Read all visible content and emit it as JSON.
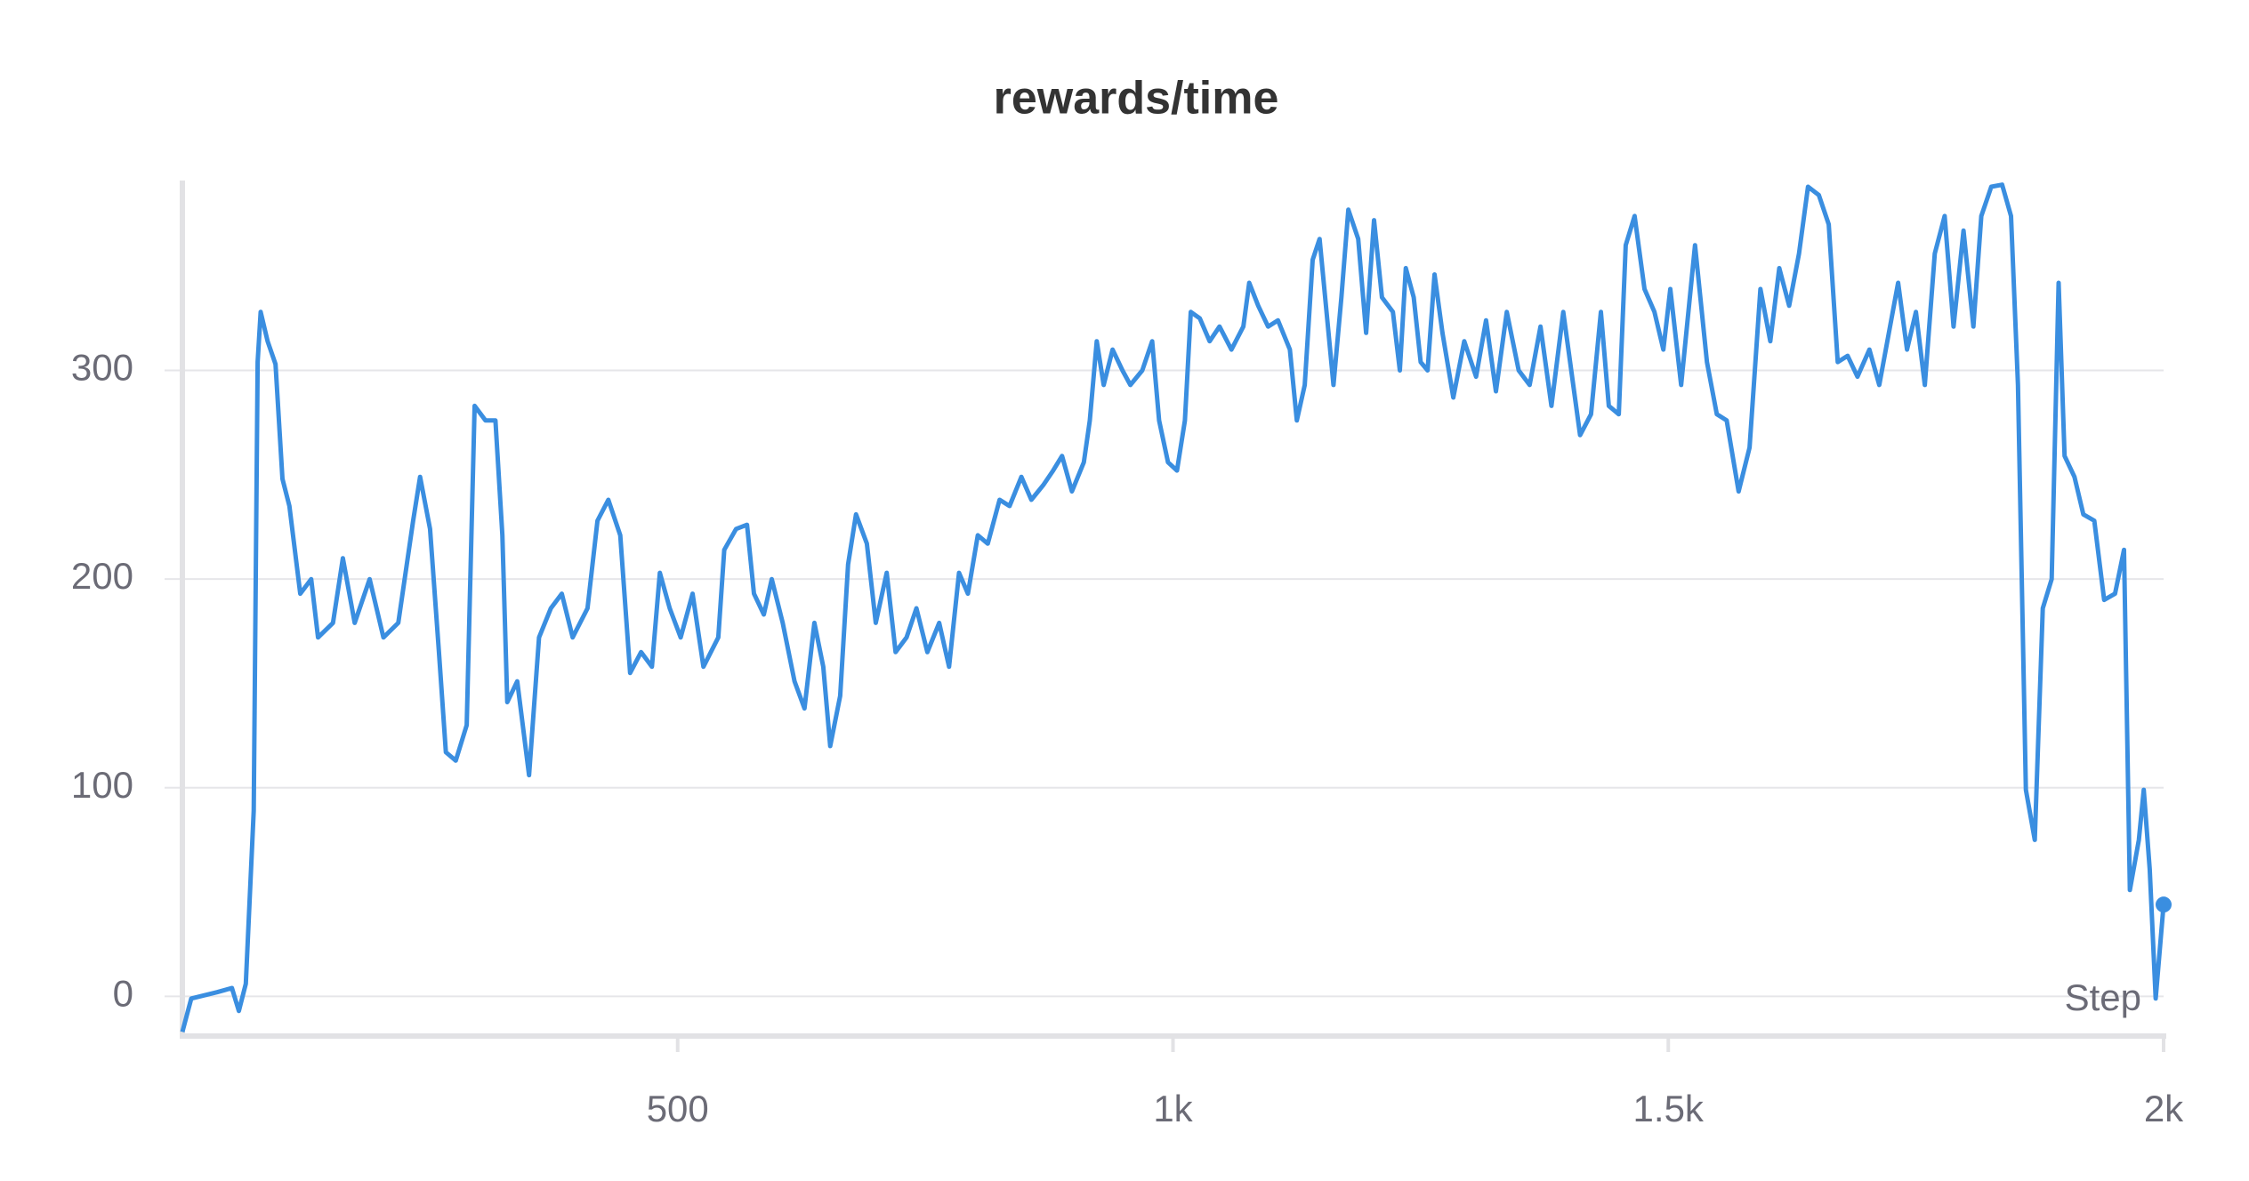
{
  "chart_data": {
    "type": "line",
    "title": "rewards/time",
    "x_label": "Step",
    "x": [
      0,
      9,
      35,
      50,
      57,
      64,
      72,
      76,
      79,
      86,
      94,
      101,
      108,
      119,
      130,
      137,
      152,
      162,
      174,
      189,
      203,
      218,
      233,
      240,
      250,
      259,
      266,
      276,
      287,
      295,
      306,
      316,
      323,
      328,
      338,
      350,
      360,
      372,
      383,
      394,
      409,
      419,
      430,
      442,
      452,
      463,
      474,
      482,
      492,
      503,
      515,
      526,
      541,
      547,
      559,
      570,
      577,
      587,
      595,
      606,
      618,
      628,
      638,
      647,
      654,
      664,
      672,
      680,
      691,
      700,
      711,
      720,
      731,
      741,
      752,
      764,
      774,
      784,
      793,
      803,
      813,
      825,
      835,
      847,
      857,
      869,
      879,
      888,
      898,
      910,
      916,
      923,
      930,
      939,
      949,
      957,
      969,
      979,
      986,
      995,
      1004,
      1012,
      1018,
      1027,
      1037,
      1047,
      1059,
      1071,
      1077,
      1086,
      1096,
      1106,
      1118,
      1125,
      1133,
      1141,
      1148,
      1155,
      1162,
      1170,
      1177,
      1187,
      1195,
      1203,
      1211,
      1222,
      1229,
      1235,
      1243,
      1250,
      1257,
      1264,
      1272,
      1283,
      1294,
      1306,
      1316,
      1326,
      1337,
      1349,
      1360,
      1371,
      1382,
      1394,
      1404,
      1411,
      1422,
      1432,
      1440,
      1450,
      1457,
      1466,
      1476,
      1486,
      1495,
      1502,
      1513,
      1527,
      1539,
      1549,
      1559,
      1571,
      1582,
      1593,
      1603,
      1612,
      1622,
      1632,
      1641,
      1652,
      1662,
      1671,
      1681,
      1691,
      1703,
      1713,
      1725,
      1732,
      1741,
      1750,
      1759,
      1769,
      1779,
      1788,
      1798,
      1808,
      1816,
      1826,
      1837,
      1846,
      1853,
      1861,
      1870,
      1878,
      1887,
      1894,
      1900,
      1910,
      1919,
      1930,
      1940,
      1951,
      1960,
      1966,
      1975,
      1980,
      1986,
      1992,
      2000
    ],
    "series": [
      {
        "name": "rewards/time",
        "color": "#3a8ee0",
        "values": [
          -17,
          -1,
          2,
          4,
          -7,
          6,
          89,
          304,
          328,
          314,
          303,
          248,
          235,
          193,
          200,
          172,
          179,
          210,
          179,
          200,
          172,
          179,
          228,
          249,
          224,
          165,
          117,
          113,
          130,
          283,
          276,
          276,
          221,
          141,
          151,
          106,
          172,
          186,
          193,
          172,
          186,
          228,
          238,
          221,
          155,
          165,
          158,
          203,
          186,
          172,
          193,
          158,
          172,
          214,
          224,
          226,
          193,
          183,
          200,
          179,
          151,
          138,
          179,
          158,
          120,
          144,
          207,
          231,
          217,
          179,
          203,
          165,
          172,
          186,
          165,
          179,
          158,
          203,
          193,
          221,
          217,
          238,
          235,
          249,
          238,
          245,
          252,
          259,
          242,
          256,
          276,
          314,
          293,
          310,
          300,
          293,
          300,
          314,
          276,
          256,
          252,
          276,
          328,
          325,
          314,
          321,
          310,
          321,
          342,
          331,
          321,
          324,
          310,
          276,
          293,
          353,
          363,
          328,
          293,
          335,
          377,
          363,
          318,
          372,
          335,
          328,
          300,
          349,
          335,
          304,
          300,
          346,
          318,
          287,
          314,
          297,
          324,
          290,
          328,
          300,
          293,
          321,
          283,
          328,
          293,
          269,
          279,
          328,
          283,
          279,
          360,
          374,
          339,
          328,
          310,
          339,
          293,
          360,
          304,
          279,
          276,
          242,
          263,
          339,
          314,
          349,
          331,
          356,
          388,
          384,
          370,
          304,
          307,
          297,
          310,
          293,
          324,
          342,
          310,
          328,
          293,
          356,
          374,
          321,
          367,
          321,
          374,
          388,
          389,
          374,
          293,
          99,
          75,
          186,
          200,
          342,
          259,
          249,
          231,
          228,
          190,
          193,
          214,
          51,
          75,
          99,
          61,
          -1,
          44
        ]
      }
    ],
    "xlim": [
      0,
      2000
    ],
    "ylim": [
      -19,
      391
    ],
    "xticks": [
      500,
      {
        "value": 1000,
        "label": "1k"
      },
      {
        "value": 1500,
        "label": "1.5k"
      },
      {
        "value": 2000,
        "label": "2k"
      }
    ],
    "yticks": [
      0,
      100,
      200,
      300
    ],
    "grid": true
  }
}
